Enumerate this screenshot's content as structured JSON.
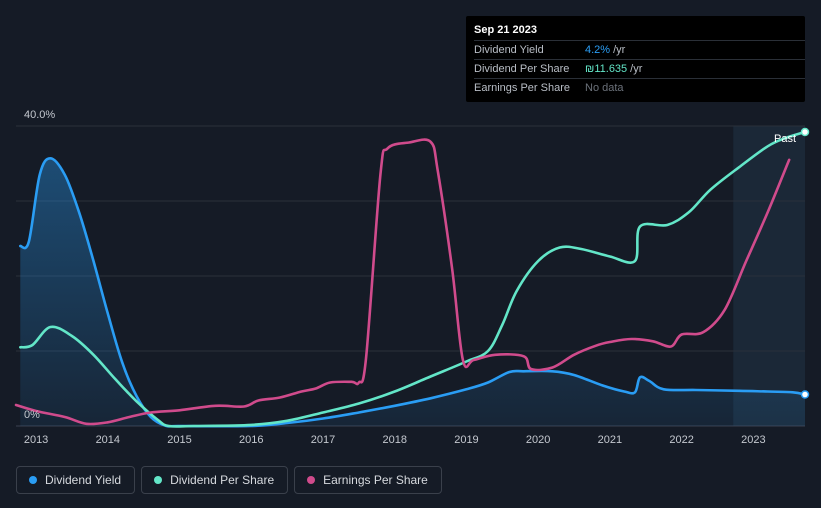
{
  "tooltip": {
    "date": "Sep 21 2023",
    "rows": [
      {
        "label": "Dividend Yield",
        "value": "4.2%",
        "unit": "/yr"
      },
      {
        "label": "Dividend Per Share",
        "value": "₪11.635",
        "unit": "/yr"
      },
      {
        "label": "Earnings Per Share",
        "value": "No data",
        "unit": ""
      }
    ]
  },
  "past_label": "Past",
  "legend": [
    {
      "label": "Dividend Yield",
      "color": "#2a9df4"
    },
    {
      "label": "Dividend Per Share",
      "color": "#63e6c8"
    },
    {
      "label": "Earnings Per Share",
      "color": "#d04b8c"
    }
  ],
  "chart_data": {
    "type": "line",
    "title": "",
    "xlabel": "",
    "ylabel": "",
    "x_ticks": [
      "2013",
      "2014",
      "2015",
      "2016",
      "2017",
      "2018",
      "2019",
      "2020",
      "2021",
      "2022",
      "2023"
    ],
    "y_ticks": [
      "0%",
      "40.0%"
    ],
    "xlim": [
      2012.72,
      2023.72
    ],
    "ylim": [
      0,
      40
    ],
    "grid": true,
    "past_region_start": 2022.72,
    "series": [
      {
        "name": "Dividend Yield",
        "color": "#2a9df4",
        "area": true,
        "points": [
          [
            2012.78,
            24
          ],
          [
            2012.9,
            24.6
          ],
          [
            2013.05,
            33.5
          ],
          [
            2013.2,
            35.7
          ],
          [
            2013.4,
            33.5
          ],
          [
            2013.6,
            28.5
          ],
          [
            2013.8,
            22
          ],
          [
            2014.0,
            15
          ],
          [
            2014.2,
            8.5
          ],
          [
            2014.4,
            4
          ],
          [
            2014.6,
            1.2
          ],
          [
            2014.8,
            0.05
          ],
          [
            2015.0,
            0
          ],
          [
            2016.0,
            0
          ],
          [
            2016.5,
            0.4
          ],
          [
            2017.0,
            1.0
          ],
          [
            2017.5,
            1.8
          ],
          [
            2018.0,
            2.7
          ],
          [
            2018.5,
            3.7
          ],
          [
            2019.0,
            4.9
          ],
          [
            2019.3,
            5.8
          ],
          [
            2019.6,
            7.2
          ],
          [
            2019.8,
            7.3
          ],
          [
            2020.2,
            7.3
          ],
          [
            2020.5,
            6.8
          ],
          [
            2020.9,
            5.4
          ],
          [
            2021.2,
            4.6
          ],
          [
            2021.35,
            4.5
          ],
          [
            2021.42,
            6.5
          ],
          [
            2021.55,
            6
          ],
          [
            2021.75,
            4.9
          ],
          [
            2022.2,
            4.8
          ],
          [
            2022.8,
            4.7
          ],
          [
            2023.2,
            4.6
          ],
          [
            2023.55,
            4.5
          ],
          [
            2023.72,
            4.2
          ]
        ]
      },
      {
        "name": "Dividend Per Share",
        "color": "#63e6c8",
        "area": false,
        "points": [
          [
            2012.78,
            10.5
          ],
          [
            2012.95,
            10.8
          ],
          [
            2013.2,
            13.2
          ],
          [
            2013.5,
            12
          ],
          [
            2013.8,
            9.5
          ],
          [
            2014.1,
            6.3
          ],
          [
            2014.4,
            3.3
          ],
          [
            2014.7,
            0.8
          ],
          [
            2014.85,
            0
          ],
          [
            2015.2,
            0
          ],
          [
            2016.0,
            0.15
          ],
          [
            2016.5,
            0.7
          ],
          [
            2017.0,
            1.8
          ],
          [
            2017.5,
            3.0
          ],
          [
            2018.0,
            4.6
          ],
          [
            2018.5,
            6.6
          ],
          [
            2019.0,
            8.6
          ],
          [
            2019.3,
            10
          ],
          [
            2019.5,
            13.5
          ],
          [
            2019.7,
            18
          ],
          [
            2020.0,
            22
          ],
          [
            2020.3,
            23.8
          ],
          [
            2020.6,
            23.6
          ],
          [
            2021.0,
            22.6
          ],
          [
            2021.35,
            22
          ],
          [
            2021.42,
            26.6
          ],
          [
            2021.8,
            26.8
          ],
          [
            2022.1,
            28.5
          ],
          [
            2022.4,
            31.5
          ],
          [
            2022.8,
            34.5
          ],
          [
            2023.2,
            37.3
          ],
          [
            2023.45,
            38.4
          ],
          [
            2023.72,
            39.2
          ]
        ]
      },
      {
        "name": "Earnings Per Share",
        "color": "#d04b8c",
        "area": false,
        "points": [
          [
            2012.72,
            2.8
          ],
          [
            2013.0,
            2
          ],
          [
            2013.4,
            1.2
          ],
          [
            2013.7,
            0.3
          ],
          [
            2014.0,
            0.5
          ],
          [
            2014.3,
            1.2
          ],
          [
            2014.6,
            1.8
          ],
          [
            2015.0,
            2.1
          ],
          [
            2015.5,
            2.7
          ],
          [
            2015.9,
            2.6
          ],
          [
            2016.1,
            3.4
          ],
          [
            2016.4,
            3.8
          ],
          [
            2016.7,
            4.6
          ],
          [
            2016.9,
            5
          ],
          [
            2017.1,
            5.8
          ],
          [
            2017.4,
            5.9
          ],
          [
            2017.5,
            5.8
          ],
          [
            2017.6,
            9
          ],
          [
            2017.8,
            33.5
          ],
          [
            2017.9,
            37
          ],
          [
            2018.2,
            37.8
          ],
          [
            2018.5,
            37.9
          ],
          [
            2018.6,
            34
          ],
          [
            2018.8,
            21
          ],
          [
            2018.95,
            8.8
          ],
          [
            2019.1,
            8.8
          ],
          [
            2019.4,
            9.5
          ],
          [
            2019.8,
            9.3
          ],
          [
            2019.9,
            7.6
          ],
          [
            2020.2,
            7.8
          ],
          [
            2020.5,
            9.5
          ],
          [
            2020.8,
            10.7
          ],
          [
            2021.0,
            11.2
          ],
          [
            2021.3,
            11.6
          ],
          [
            2021.6,
            11.3
          ],
          [
            2021.85,
            10.6
          ],
          [
            2022.0,
            12.2
          ],
          [
            2022.3,
            12.5
          ],
          [
            2022.6,
            15.5
          ],
          [
            2022.9,
            22
          ],
          [
            2023.2,
            28.5
          ],
          [
            2023.5,
            35.5
          ]
        ]
      }
    ]
  }
}
